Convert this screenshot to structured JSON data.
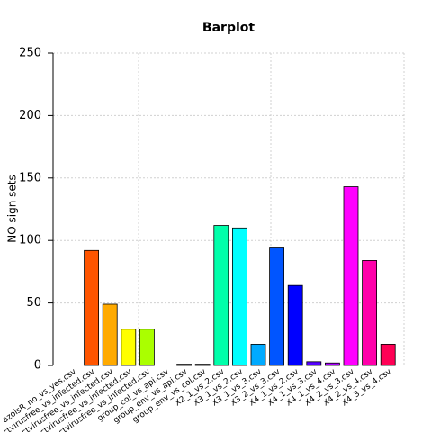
{
  "chart_data": {
    "type": "bar",
    "title": "Barplot",
    "xlabel": "",
    "ylabel": "NO sign sets",
    "ylim": [
      0,
      250
    ],
    "yticks": [
      0,
      50,
      100,
      150,
      200,
      250
    ],
    "grid": true,
    "categories": [
      "azolsR_no_vs_yes.csv",
      "Insectvirusfree_vs_infected.csv",
      "Insectvirusfree_vs_infected.csv",
      "Insectvirusfree_vs_infected.csv",
      "Insectvirusfree_vs_infected.csv",
      "group_col_vs_api.csv",
      "group_env_vs_api.csv",
      "group_env_vs_col.csv",
      "X2_1_vs_2.csv",
      "X3_1_vs_2.csv",
      "X3_1_vs_3.csv",
      "X3_2_vs_3.csv",
      "X4_1_vs_2.csv",
      "X4_1_vs_3.csv",
      "X4_1_vs_4.csv",
      "X4_2_vs_3.csv",
      "X4_2_vs_4.csv",
      "X4_3_vs_4.csv"
    ],
    "values": [
      0,
      92,
      49,
      29,
      29,
      0,
      1,
      1,
      112,
      110,
      17,
      94,
      64,
      3,
      2,
      143,
      84,
      17
    ],
    "colors": [
      "#FF0000",
      "#FF5500",
      "#FFAA00",
      "#FFFF00",
      "#AAFF00",
      "#55FF00",
      "#00FF00",
      "#00FF55",
      "#00FFAA",
      "#00FFFF",
      "#00AAFF",
      "#0055FF",
      "#0000FF",
      "#5500FF",
      "#AA00FF",
      "#FF00FF",
      "#FF00AA",
      "#FF0055"
    ]
  }
}
